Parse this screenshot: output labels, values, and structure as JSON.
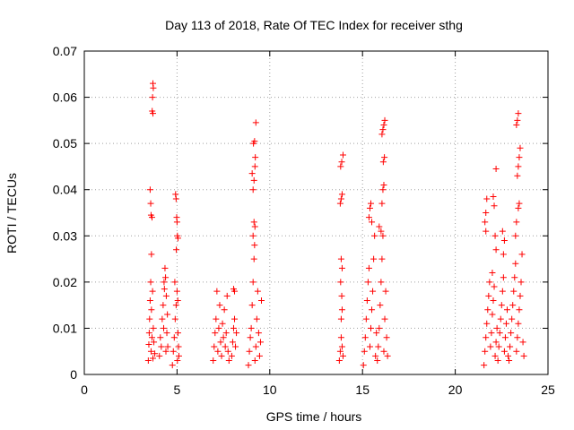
{
  "chart_data": {
    "type": "scatter",
    "title": "Day 113 of 2018, Rate Of TEC Index for receiver sthg",
    "xlabel": "GPS time / hours",
    "ylabel": "ROTI / TECUs",
    "xlim": [
      0,
      25
    ],
    "ylim": [
      0,
      0.07
    ],
    "xticks": [
      0,
      5,
      10,
      15,
      20,
      25
    ],
    "xtick_labels": [
      "0",
      "5",
      "10",
      "15",
      "20",
      "25"
    ],
    "yticks": [
      0,
      0.01,
      0.02,
      0.03,
      0.04,
      0.05,
      0.06,
      0.07
    ],
    "ytick_labels": [
      "0",
      "0.01",
      "0.02",
      "0.03",
      "0.04",
      "0.05",
      "0.06",
      "0.07"
    ],
    "grid": true,
    "marker": "+",
    "color": "#ff0000",
    "series": [
      {
        "name": "ROTI",
        "points": [
          [
            3.45,
            0.003
          ],
          [
            3.48,
            0.0065
          ],
          [
            3.5,
            0.009
          ],
          [
            3.52,
            0.012
          ],
          [
            3.55,
            0.016
          ],
          [
            3.58,
            0.02
          ],
          [
            3.6,
            0.005
          ],
          [
            3.62,
            0.014
          ],
          [
            3.65,
            0.008
          ],
          [
            3.68,
            0.018
          ],
          [
            3.7,
            0.0035
          ],
          [
            3.72,
            0.01
          ],
          [
            3.55,
            0.04
          ],
          [
            3.58,
            0.037
          ],
          [
            3.6,
            0.0345
          ],
          [
            3.65,
            0.034
          ],
          [
            3.62,
            0.026
          ],
          [
            3.7,
            0.063
          ],
          [
            3.72,
            0.062
          ],
          [
            3.68,
            0.06
          ],
          [
            3.66,
            0.057
          ],
          [
            3.7,
            0.0565
          ],
          [
            3.75,
            0.007
          ],
          [
            3.8,
            0.0045
          ],
          [
            4.05,
            0.004
          ],
          [
            4.1,
            0.008
          ],
          [
            4.15,
            0.006
          ],
          [
            4.2,
            0.012
          ],
          [
            4.25,
            0.015
          ],
          [
            4.28,
            0.01
          ],
          [
            4.3,
            0.02
          ],
          [
            4.35,
            0.023
          ],
          [
            4.4,
            0.005
          ],
          [
            4.42,
            0.017
          ],
          [
            4.45,
            0.009
          ],
          [
            4.48,
            0.013
          ],
          [
            4.5,
            0.006
          ],
          [
            4.38,
            0.021
          ],
          [
            4.32,
            0.0185
          ],
          [
            4.75,
            0.002
          ],
          [
            4.8,
            0.005
          ],
          [
            4.85,
            0.008
          ],
          [
            4.9,
            0.012
          ],
          [
            4.95,
            0.015
          ],
          [
            5.0,
            0.018
          ],
          [
            5.02,
            0.003
          ],
          [
            5.05,
            0.009
          ],
          [
            5.08,
            0.006
          ],
          [
            5.1,
            0.004
          ],
          [
            4.92,
            0.039
          ],
          [
            4.95,
            0.038
          ],
          [
            4.98,
            0.034
          ],
          [
            5.0,
            0.033
          ],
          [
            5.02,
            0.03
          ],
          [
            5.05,
            0.0295
          ],
          [
            4.96,
            0.027
          ],
          [
            4.88,
            0.02
          ],
          [
            5.04,
            0.016
          ],
          [
            6.95,
            0.003
          ],
          [
            7.0,
            0.006
          ],
          [
            7.05,
            0.009
          ],
          [
            7.1,
            0.012
          ],
          [
            7.15,
            0.018
          ],
          [
            7.2,
            0.005
          ],
          [
            7.25,
            0.01
          ],
          [
            7.3,
            0.015
          ],
          [
            7.35,
            0.007
          ],
          [
            7.4,
            0.004
          ],
          [
            7.45,
            0.011
          ],
          [
            7.5,
            0.008
          ],
          [
            7.55,
            0.014
          ],
          [
            7.6,
            0.006
          ],
          [
            7.65,
            0.009
          ],
          [
            7.7,
            0.017
          ],
          [
            7.75,
            0.005
          ],
          [
            7.8,
            0.003
          ],
          [
            7.95,
            0.004
          ],
          [
            8.0,
            0.007
          ],
          [
            8.05,
            0.01
          ],
          [
            8.1,
            0.012
          ],
          [
            8.15,
            0.006
          ],
          [
            8.05,
            0.0185
          ],
          [
            8.1,
            0.018
          ],
          [
            8.2,
            0.009
          ],
          [
            8.85,
            0.002
          ],
          [
            8.9,
            0.005
          ],
          [
            8.95,
            0.008
          ],
          [
            9.0,
            0.01
          ],
          [
            9.05,
            0.015
          ],
          [
            9.1,
            0.02
          ],
          [
            9.15,
            0.025
          ],
          [
            9.2,
            0.003
          ],
          [
            9.25,
            0.006
          ],
          [
            9.3,
            0.012
          ],
          [
            9.35,
            0.018
          ],
          [
            9.4,
            0.009
          ],
          [
            9.45,
            0.004
          ],
          [
            9.5,
            0.007
          ],
          [
            9.55,
            0.016
          ],
          [
            9.15,
            0.033
          ],
          [
            9.2,
            0.032
          ],
          [
            9.1,
            0.03
          ],
          [
            9.18,
            0.028
          ],
          [
            9.1,
            0.04
          ],
          [
            9.15,
            0.042
          ],
          [
            9.05,
            0.0435
          ],
          [
            9.2,
            0.045
          ],
          [
            9.22,
            0.047
          ],
          [
            9.12,
            0.05
          ],
          [
            9.18,
            0.0505
          ],
          [
            9.25,
            0.0545
          ],
          [
            13.75,
            0.003
          ],
          [
            13.8,
            0.005
          ],
          [
            13.85,
            0.008
          ],
          [
            13.9,
            0.006
          ],
          [
            13.95,
            0.004
          ],
          [
            13.85,
            0.012
          ],
          [
            13.9,
            0.014
          ],
          [
            13.88,
            0.017
          ],
          [
            13.82,
            0.02
          ],
          [
            13.9,
            0.023
          ],
          [
            13.85,
            0.025
          ],
          [
            13.8,
            0.037
          ],
          [
            13.85,
            0.038
          ],
          [
            13.9,
            0.039
          ],
          [
            13.82,
            0.045
          ],
          [
            13.88,
            0.046
          ],
          [
            13.95,
            0.0475
          ],
          [
            15.05,
            0.002
          ],
          [
            15.1,
            0.005
          ],
          [
            15.15,
            0.008
          ],
          [
            15.2,
            0.012
          ],
          [
            15.25,
            0.016
          ],
          [
            15.3,
            0.02
          ],
          [
            15.35,
            0.023
          ],
          [
            15.4,
            0.006
          ],
          [
            15.45,
            0.01
          ],
          [
            15.5,
            0.014
          ],
          [
            15.55,
            0.018
          ],
          [
            15.6,
            0.025
          ],
          [
            15.65,
            0.03
          ],
          [
            15.7,
            0.004
          ],
          [
            15.75,
            0.009
          ],
          [
            15.35,
            0.034
          ],
          [
            15.4,
            0.036
          ],
          [
            15.45,
            0.037
          ],
          [
            15.5,
            0.033
          ],
          [
            15.8,
            0.003
          ],
          [
            15.85,
            0.006
          ],
          [
            15.9,
            0.01
          ],
          [
            15.95,
            0.015
          ],
          [
            16.0,
            0.02
          ],
          [
            16.05,
            0.025
          ],
          [
            16.1,
            0.03
          ],
          [
            16.15,
            0.005
          ],
          [
            16.2,
            0.012
          ],
          [
            16.25,
            0.018
          ],
          [
            16.3,
            0.008
          ],
          [
            16.35,
            0.004
          ],
          [
            15.9,
            0.032
          ],
          [
            16.0,
            0.031
          ],
          [
            16.05,
            0.037
          ],
          [
            16.1,
            0.04
          ],
          [
            16.15,
            0.041
          ],
          [
            16.12,
            0.046
          ],
          [
            16.18,
            0.047
          ],
          [
            16.05,
            0.052
          ],
          [
            16.1,
            0.053
          ],
          [
            16.15,
            0.054
          ],
          [
            16.2,
            0.055
          ],
          [
            21.55,
            0.002
          ],
          [
            21.6,
            0.005
          ],
          [
            21.65,
            0.008
          ],
          [
            21.7,
            0.011
          ],
          [
            21.75,
            0.014
          ],
          [
            21.8,
            0.017
          ],
          [
            21.85,
            0.02
          ],
          [
            21.9,
            0.006
          ],
          [
            21.95,
            0.009
          ],
          [
            22.0,
            0.013
          ],
          [
            22.05,
            0.016
          ],
          [
            22.1,
            0.019
          ],
          [
            22.15,
            0.004
          ],
          [
            22.2,
            0.007
          ],
          [
            22.25,
            0.01
          ],
          [
            21.6,
            0.033
          ],
          [
            21.65,
            0.035
          ],
          [
            21.7,
            0.038
          ],
          [
            21.65,
            0.031
          ],
          [
            22.05,
            0.0385
          ],
          [
            22.1,
            0.0365
          ],
          [
            22.2,
            0.0445
          ],
          [
            22.15,
            0.03
          ],
          [
            22.2,
            0.027
          ],
          [
            22.0,
            0.022
          ],
          [
            22.3,
            0.003
          ],
          [
            22.35,
            0.006
          ],
          [
            22.4,
            0.009
          ],
          [
            22.45,
            0.012
          ],
          [
            22.5,
            0.015
          ],
          [
            22.55,
            0.018
          ],
          [
            22.6,
            0.021
          ],
          [
            22.65,
            0.005
          ],
          [
            22.7,
            0.008
          ],
          [
            22.75,
            0.011
          ],
          [
            22.8,
            0.014
          ],
          [
            22.85,
            0.004
          ],
          [
            22.6,
            0.026
          ],
          [
            22.65,
            0.029
          ],
          [
            22.55,
            0.031
          ],
          [
            22.9,
            0.003
          ],
          [
            22.95,
            0.006
          ],
          [
            23.0,
            0.009
          ],
          [
            23.05,
            0.012
          ],
          [
            23.1,
            0.015
          ],
          [
            23.15,
            0.018
          ],
          [
            23.2,
            0.021
          ],
          [
            23.25,
            0.024
          ],
          [
            23.3,
            0.005
          ],
          [
            23.35,
            0.008
          ],
          [
            23.4,
            0.011
          ],
          [
            23.45,
            0.014
          ],
          [
            23.5,
            0.017
          ],
          [
            23.55,
            0.02
          ],
          [
            23.6,
            0.026
          ],
          [
            23.65,
            0.007
          ],
          [
            23.7,
            0.004
          ],
          [
            23.25,
            0.03
          ],
          [
            23.3,
            0.033
          ],
          [
            23.4,
            0.036
          ],
          [
            23.45,
            0.037
          ],
          [
            23.35,
            0.043
          ],
          [
            23.4,
            0.045
          ],
          [
            23.45,
            0.047
          ],
          [
            23.5,
            0.049
          ],
          [
            23.3,
            0.054
          ],
          [
            23.35,
            0.055
          ],
          [
            23.4,
            0.0565
          ]
        ]
      }
    ]
  }
}
